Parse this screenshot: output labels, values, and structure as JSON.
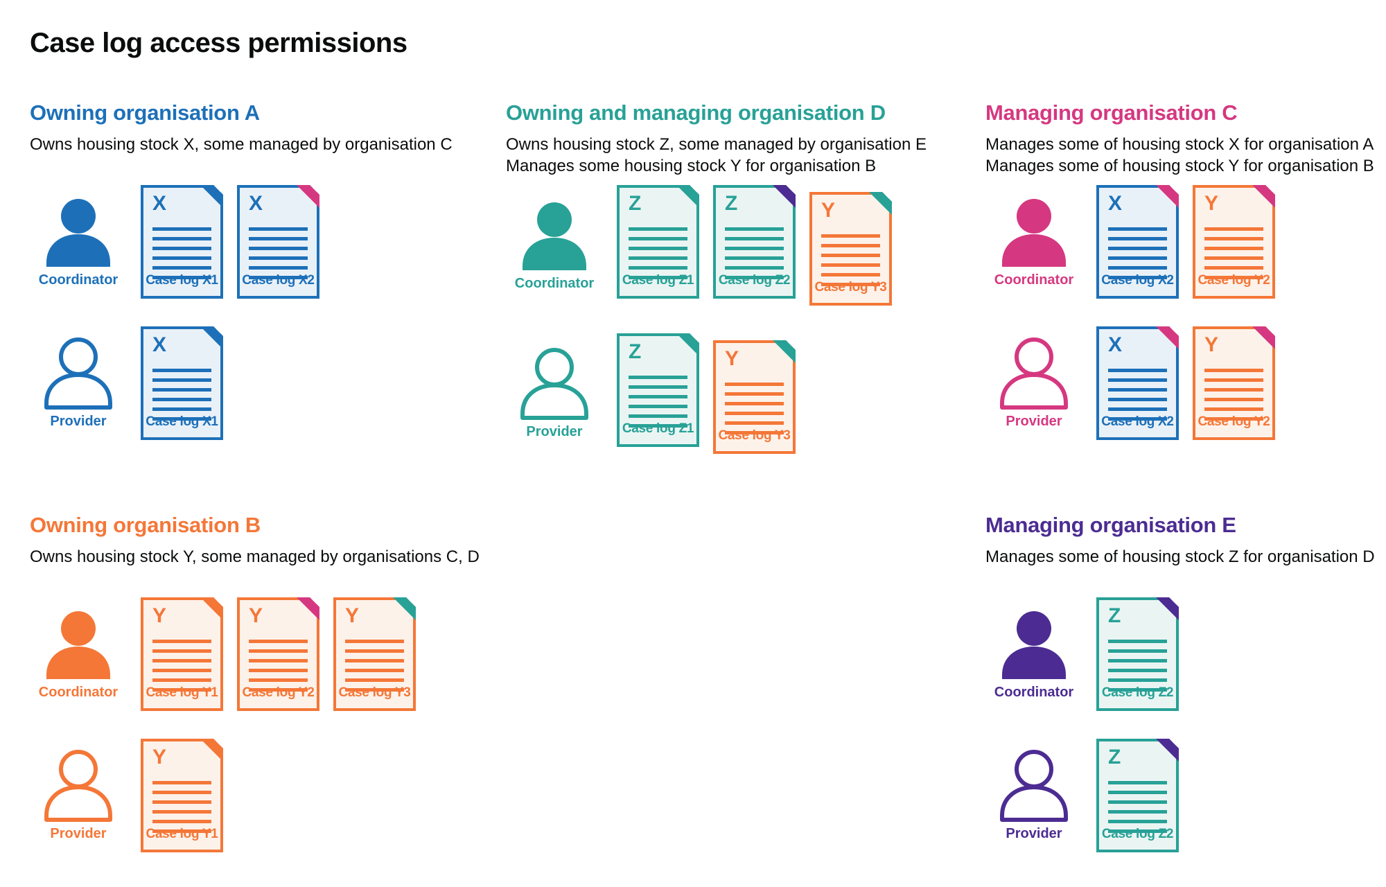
{
  "page": {
    "title": "Case log access permissions"
  },
  "person_roles": {
    "coordinator": "Coordinator",
    "provider": "Provider"
  },
  "palette": {
    "blue": "#1d70b8",
    "teal": "#28a197",
    "pink": "#d53880",
    "orange": "#f47738",
    "purple": "#4c2c92",
    "text": "#0b0c0c"
  },
  "sections": [
    {
      "id": "A",
      "title": "Owning organisation A",
      "color": "#1d70b8",
      "layout": {
        "column": 1,
        "row": 1
      },
      "description": [
        "Owns housing stock X, some managed by organisation C"
      ],
      "rows": [
        {
          "role": "Coordinator",
          "person": "filled",
          "docs": [
            {
              "letter": "X",
              "caption": "Case log X1",
              "color": "#1d70b8",
              "fill": "#e9f1f8",
              "ear": "#1d70b8"
            },
            {
              "letter": "X",
              "caption": "Case log X2",
              "color": "#1d70b8",
              "fill": "#e9f1f8",
              "ear": "#d53880"
            }
          ]
        },
        {
          "role": "Provider",
          "person": "outline",
          "docs": [
            {
              "letter": "X",
              "caption": "Case log X1",
              "color": "#1d70b8",
              "fill": "#e9f1f8",
              "ear": "#1d70b8"
            }
          ]
        }
      ]
    },
    {
      "id": "D",
      "title": "Owning and managing organisation D",
      "color": "#28a197",
      "layout": {
        "column": 2,
        "row": 1
      },
      "description": [
        "Owns housing stock Z, some managed by organisation E",
        "Manages some housing stock Y for organisation B"
      ],
      "rows": [
        {
          "role": "Coordinator",
          "person": "filled",
          "docs": [
            {
              "letter": "Z",
              "caption": "Case log Z1",
              "color": "#28a197",
              "fill": "#eaf5f3",
              "ear": "#28a197"
            },
            {
              "letter": "Z",
              "caption": "Case log Z2",
              "color": "#28a197",
              "fill": "#eaf5f3",
              "ear": "#4c2c92"
            },
            {
              "letter": "Y",
              "caption": "Case log Y3",
              "color": "#f47738",
              "fill": "#fdf2ea",
              "ear": "#28a197",
              "offset": true
            }
          ]
        },
        {
          "role": "Provider",
          "person": "outline",
          "docs": [
            {
              "letter": "Z",
              "caption": "Case log Z1",
              "color": "#28a197",
              "fill": "#eaf5f3",
              "ear": "#28a197"
            },
            {
              "letter": "Y",
              "caption": "Case log Y3",
              "color": "#f47738",
              "fill": "#fdf2ea",
              "ear": "#28a197",
              "offset": true
            }
          ]
        }
      ]
    },
    {
      "id": "C",
      "title": "Managing organisation C",
      "color": "#d53880",
      "layout": {
        "column": 3,
        "row": 1
      },
      "description": [
        "Manages some of housing stock X for organisation A",
        "Manages some of housing stock Y for organisation B"
      ],
      "rows": [
        {
          "role": "Coordinator",
          "person": "filled",
          "docs": [
            {
              "letter": "X",
              "caption": "Case log X2",
              "color": "#1d70b8",
              "fill": "#e9f1f8",
              "ear": "#d53880"
            },
            {
              "letter": "Y",
              "caption": "Case log Y2",
              "color": "#f47738",
              "fill": "#fdf2ea",
              "ear": "#d53880"
            }
          ]
        },
        {
          "role": "Provider",
          "person": "outline",
          "docs": [
            {
              "letter": "X",
              "caption": "Case log X2",
              "color": "#1d70b8",
              "fill": "#e9f1f8",
              "ear": "#d53880"
            },
            {
              "letter": "Y",
              "caption": "Case log Y2",
              "color": "#f47738",
              "fill": "#fdf2ea",
              "ear": "#d53880"
            }
          ]
        }
      ]
    },
    {
      "id": "B",
      "title": "Owning organisation B",
      "color": "#f47738",
      "layout": {
        "column": 1,
        "row": 2
      },
      "description": [
        "Owns housing stock Y, some managed by organisations C, D"
      ],
      "rows": [
        {
          "role": "Coordinator",
          "person": "filled",
          "docs": [
            {
              "letter": "Y",
              "caption": "Case log Y1",
              "color": "#f47738",
              "fill": "#fdf2ea",
              "ear": "#f47738"
            },
            {
              "letter": "Y",
              "caption": "Case log Y2",
              "color": "#f47738",
              "fill": "#fdf2ea",
              "ear": "#d53880"
            },
            {
              "letter": "Y",
              "caption": "Case log Y3",
              "color": "#f47738",
              "fill": "#fdf2ea",
              "ear": "#28a197"
            }
          ]
        },
        {
          "role": "Provider",
          "person": "outline",
          "docs": [
            {
              "letter": "Y",
              "caption": "Case log Y1",
              "color": "#f47738",
              "fill": "#fdf2ea",
              "ear": "#f47738"
            }
          ]
        }
      ]
    },
    {
      "id": "E",
      "title": "Managing organisation E",
      "color": "#4c2c92",
      "layout": {
        "column": 3,
        "row": 2
      },
      "description": [
        "Manages some of housing stock Z for organisation D"
      ],
      "rows": [
        {
          "role": "Coordinator",
          "person": "filled",
          "docs": [
            {
              "letter": "Z",
              "caption": "Case log Z2",
              "color": "#28a197",
              "fill": "#eaf5f3",
              "ear": "#4c2c92"
            }
          ]
        },
        {
          "role": "Provider",
          "person": "outline",
          "docs": [
            {
              "letter": "Z",
              "caption": "Case log Z2",
              "color": "#28a197",
              "fill": "#eaf5f3",
              "ear": "#4c2c92"
            }
          ]
        }
      ]
    }
  ]
}
